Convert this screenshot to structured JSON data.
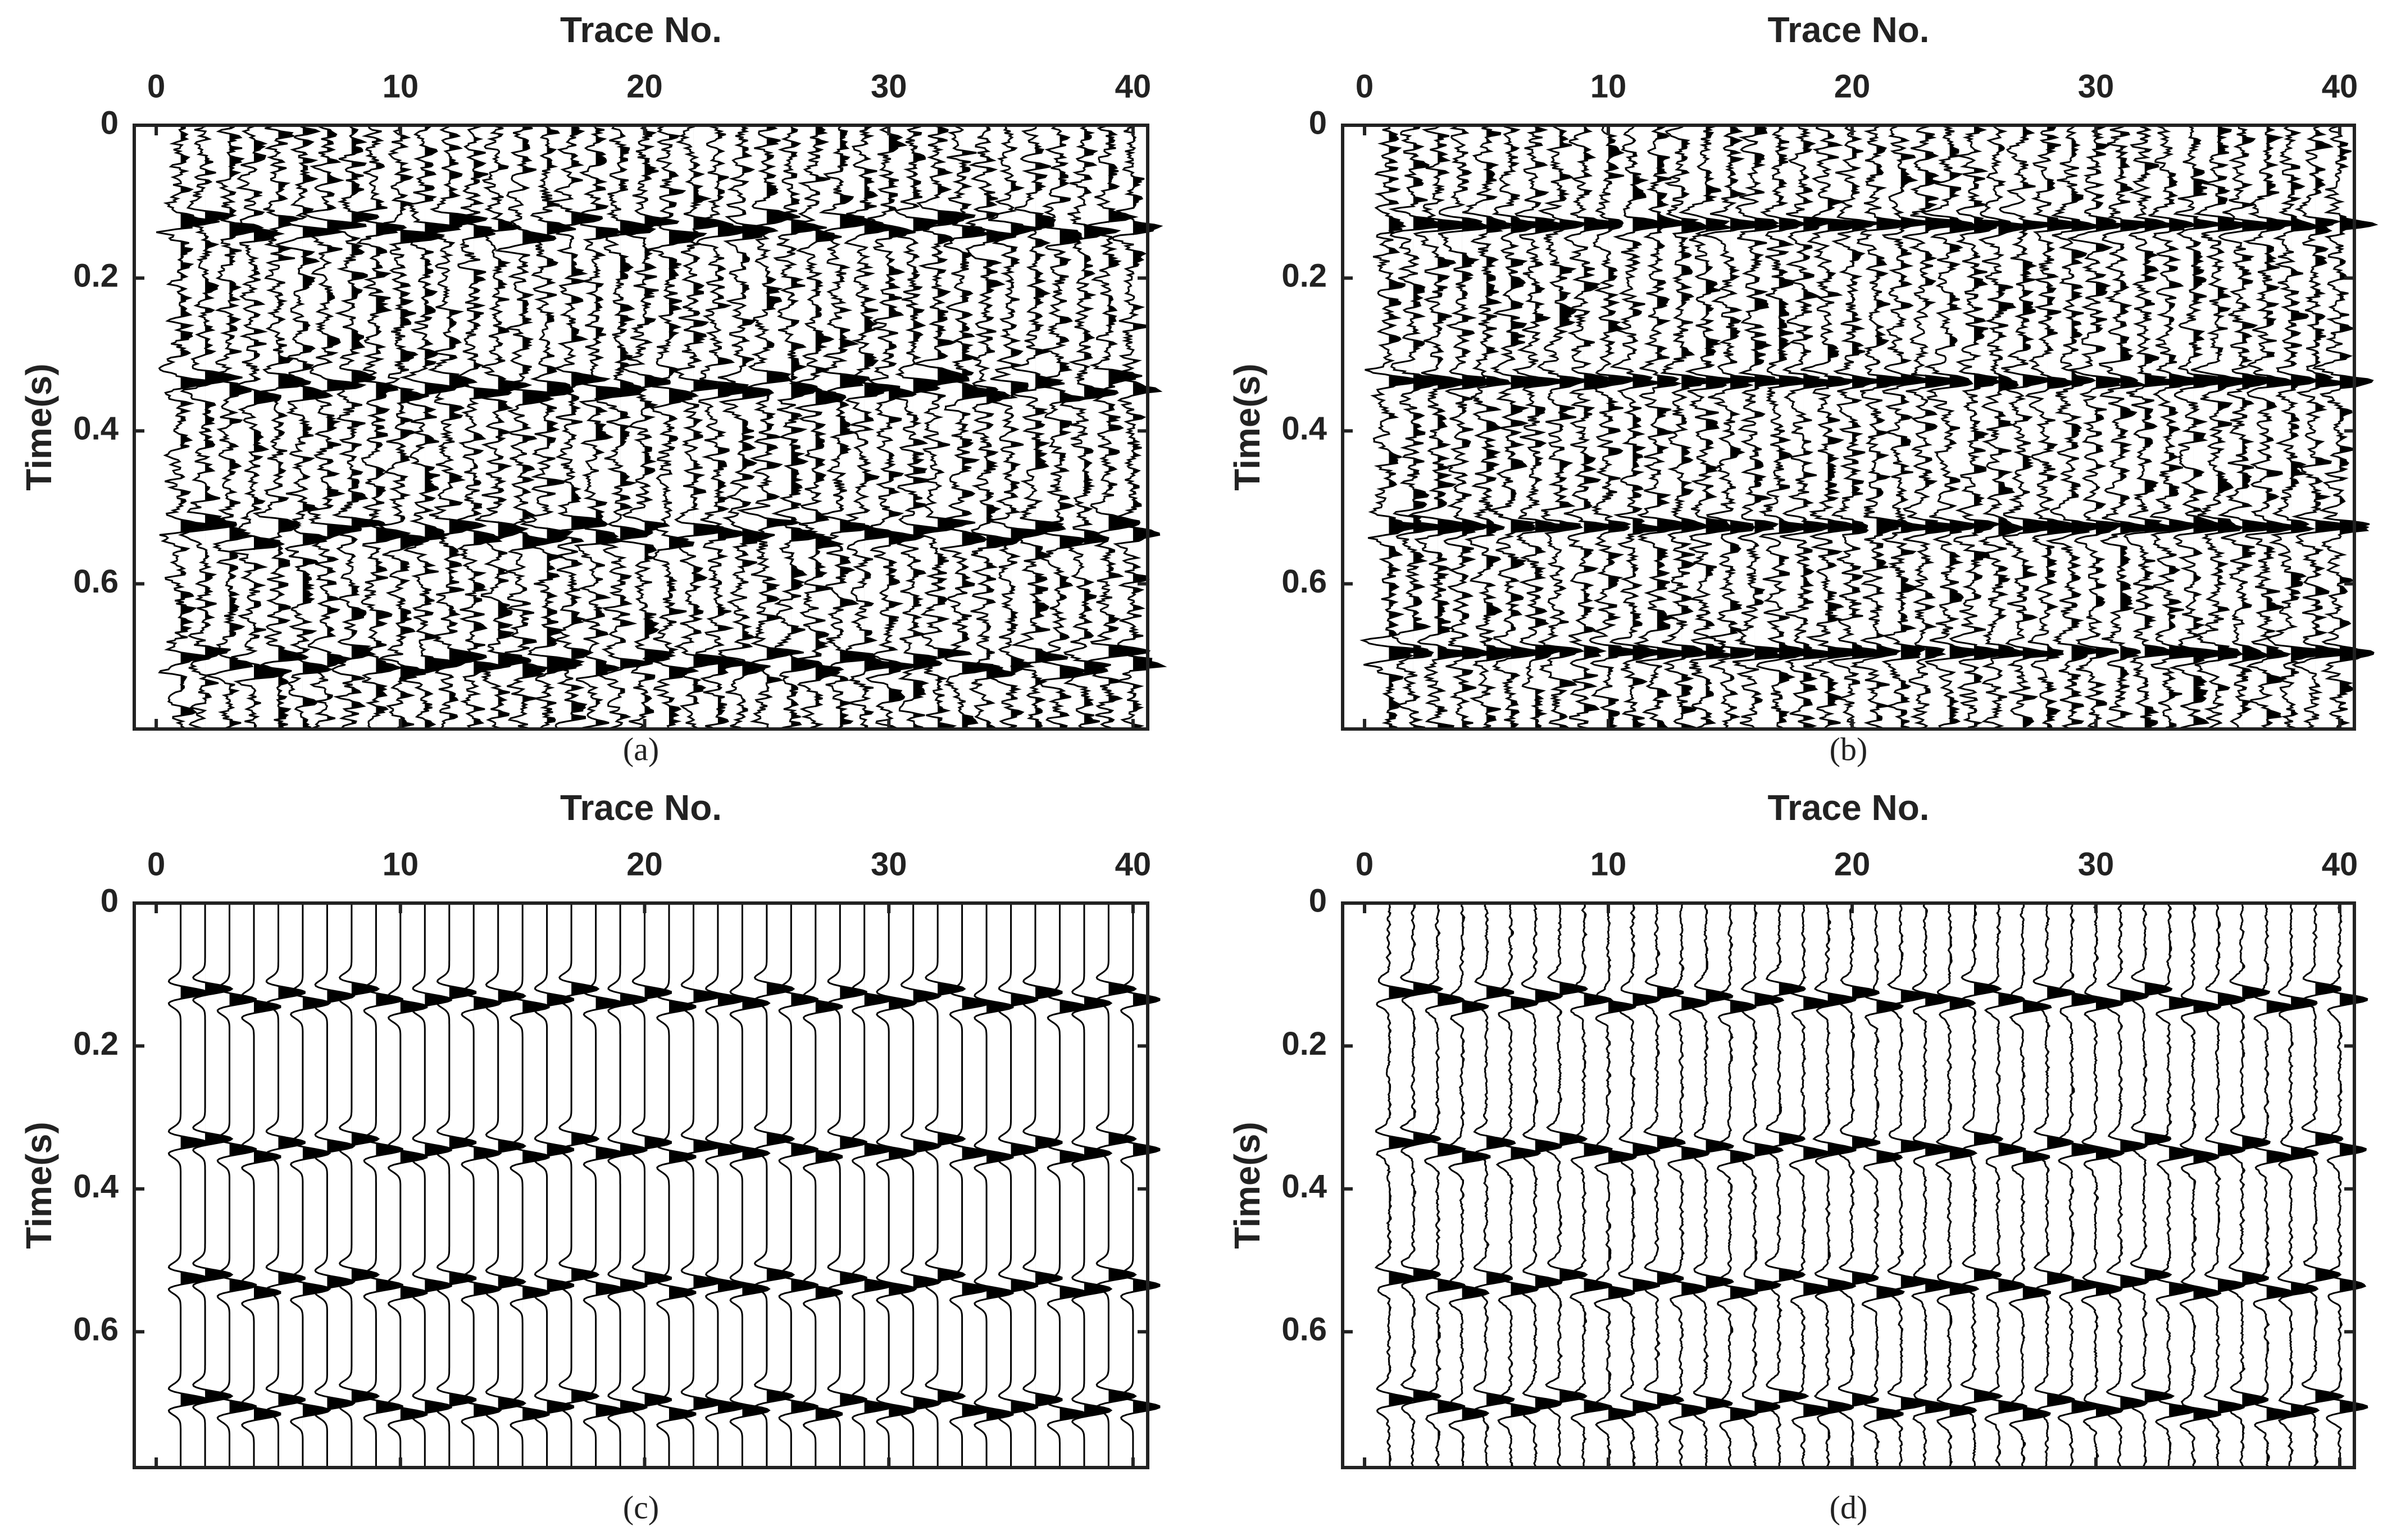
{
  "chart_data": [
    {
      "type": "wiggle",
      "xlabel": "Trace No.",
      "ylabel": "Time(s)",
      "caption": "(a)",
      "xlim": [
        -0.9,
        40.6
      ],
      "xticks": [
        0,
        10,
        20,
        30,
        40
      ],
      "ylim": [
        0,
        0.79
      ],
      "yticks": [
        0,
        0.2,
        0.4,
        0.6
      ],
      "event_times": [
        0.125,
        0.335,
        0.525,
        0.695
      ],
      "static_shifts": [
        0,
        -0.005,
        0.01,
        0.02,
        0,
        0.015,
        0.005,
        -0.005,
        0.01,
        0.02,
        0.01,
        0,
        0.015,
        0.005,
        0.02,
        0.01,
        -0.005,
        0.015,
        0.01,
        0,
        0.02,
        0.005,
        0.01,
        0.015,
        -0.005,
        0.01,
        0.02,
        0,
        0.01,
        0.015,
        0.005,
        -0.005,
        0.015,
        0.02,
        0.01,
        0,
        0.02,
        0.015,
        -0.005,
        0.01
      ],
      "noise": 0.55,
      "color": "#000000"
    },
    {
      "type": "wiggle",
      "xlabel": "Trace No.",
      "ylabel": "Time(s)",
      "caption": "(b)",
      "xlim": [
        -0.9,
        40.6
      ],
      "xticks": [
        0,
        10,
        20,
        30,
        40
      ],
      "ylim": [
        0,
        0.79
      ],
      "yticks": [
        0,
        0.2,
        0.4,
        0.6
      ],
      "event_times": [
        0.13,
        0.335,
        0.525,
        0.69
      ],
      "static_shifts": [
        0,
        0,
        0,
        0,
        0,
        0,
        0,
        0,
        0,
        0,
        0,
        0,
        0,
        0,
        0,
        0,
        0,
        0,
        0,
        0,
        0,
        0,
        0,
        0,
        0,
        0,
        0,
        0,
        0,
        0,
        0,
        0,
        0,
        0,
        0,
        0,
        0,
        0,
        0,
        0
      ],
      "noise": 0.55,
      "color": "#000000"
    },
    {
      "type": "wiggle",
      "xlabel": "Trace No.",
      "ylabel": "Time(s)",
      "caption": "(c)",
      "xlim": [
        -0.9,
        40.6
      ],
      "xticks": [
        0,
        10,
        20,
        30,
        40
      ],
      "ylim": [
        0,
        0.79
      ],
      "yticks": [
        0,
        0.2,
        0.4,
        0.6
      ],
      "event_times": [
        0.125,
        0.335,
        0.525,
        0.695
      ],
      "static_shifts": [
        0,
        -0.005,
        0.01,
        0.02,
        0,
        0.015,
        0.005,
        -0.005,
        0.01,
        0.02,
        0.01,
        0,
        0.015,
        0.005,
        0.02,
        0.01,
        -0.005,
        0.015,
        0.01,
        0,
        0.02,
        0.005,
        0.01,
        0.015,
        -0.005,
        0.01,
        0.02,
        0,
        0.01,
        0.015,
        0.005,
        -0.005,
        0.015,
        0.02,
        0.01,
        0,
        0.02,
        0.015,
        -0.005,
        0.01
      ],
      "noise": 0,
      "color": "#000000"
    },
    {
      "type": "wiggle",
      "xlabel": "Trace No.",
      "ylabel": "Time(s)",
      "caption": "(d)",
      "xlim": [
        -0.9,
        40.6
      ],
      "xticks": [
        0,
        10,
        20,
        30,
        40
      ],
      "ylim": [
        0,
        0.79
      ],
      "yticks": [
        0,
        0.2,
        0.4,
        0.6
      ],
      "event_times": [
        0.125,
        0.335,
        0.525,
        0.695
      ],
      "static_shifts": [
        0,
        -0.005,
        0.01,
        0.02,
        0,
        0.015,
        0.005,
        -0.005,
        0.01,
        0.02,
        0.01,
        0,
        0.015,
        0.005,
        0.02,
        0.01,
        -0.005,
        0.015,
        0.01,
        0,
        0.02,
        0.005,
        0.01,
        0.015,
        -0.005,
        0.01,
        0.02,
        0,
        0.01,
        0.015,
        0.005,
        -0.005,
        0.015,
        0.02,
        0.01,
        0,
        0.02,
        0.015,
        -0.005,
        0.01
      ],
      "noise": 0.08,
      "color": "#000000"
    }
  ]
}
